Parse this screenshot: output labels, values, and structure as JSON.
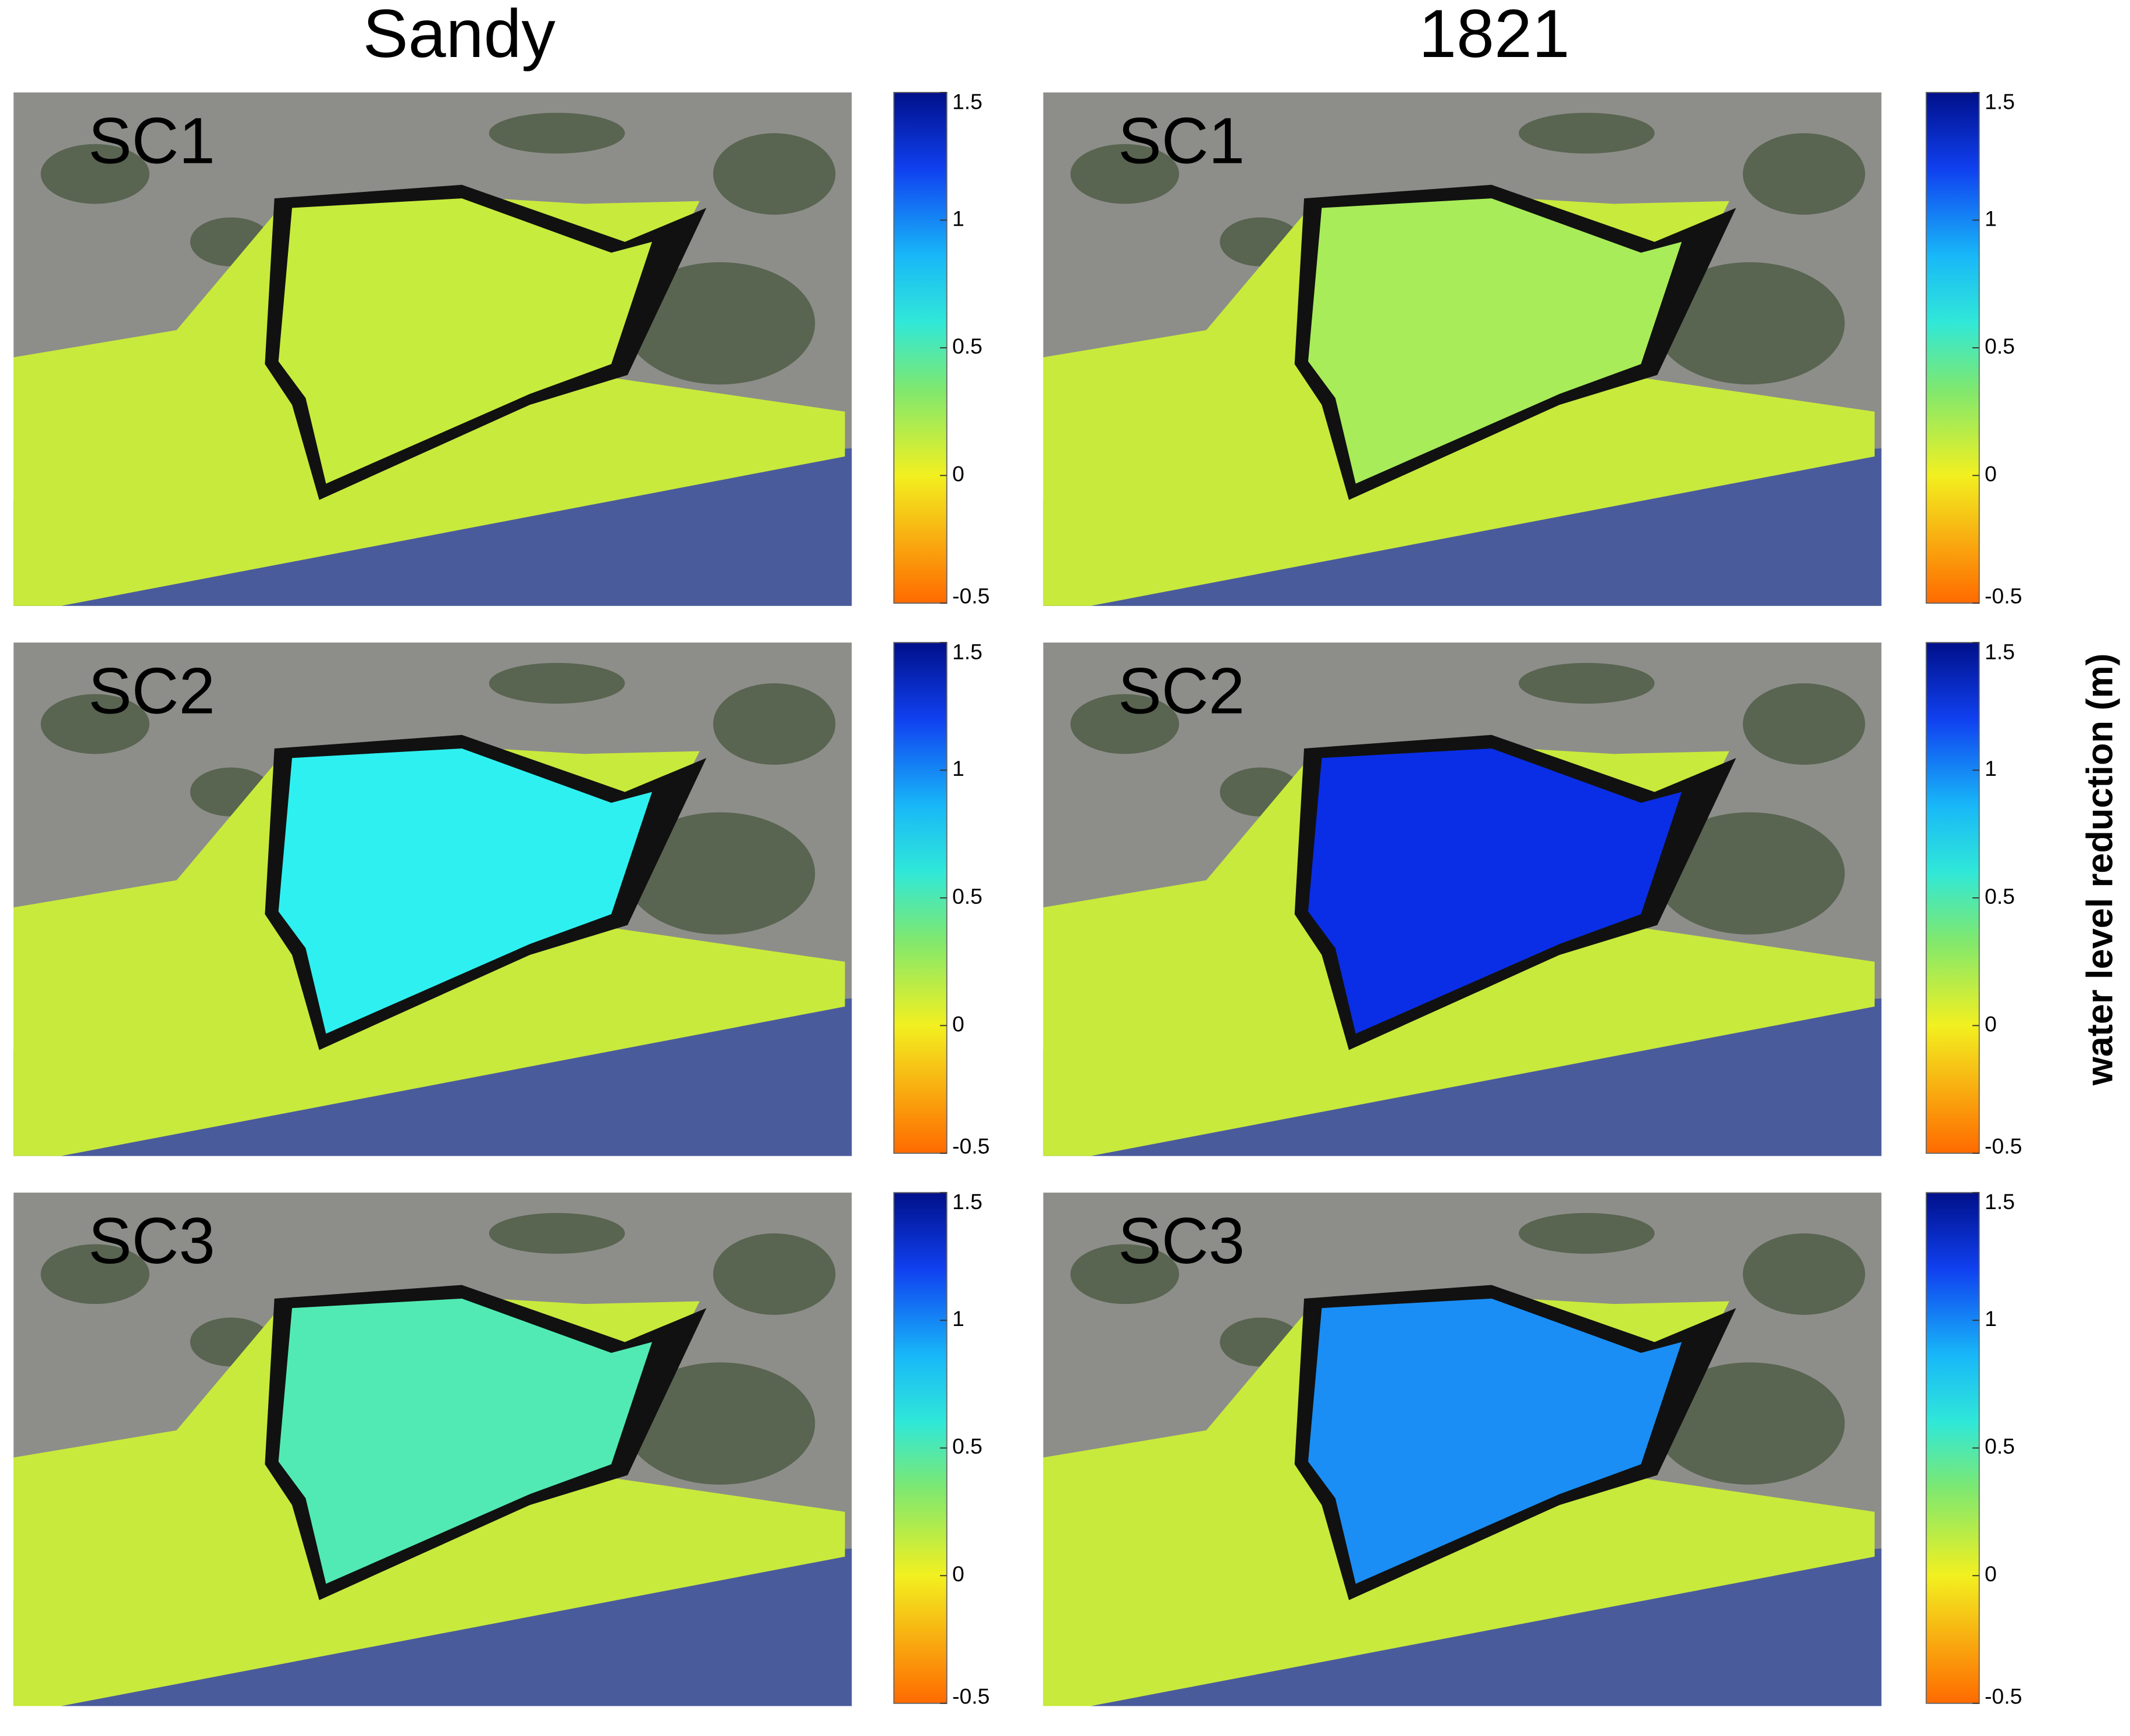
{
  "columns": [
    "Sandy",
    "1821"
  ],
  "rows": [
    "SC1",
    "SC2",
    "SC3"
  ],
  "panel_colors": [
    [
      "#c6ec3e",
      "#a8ec5a"
    ],
    [
      "#2ff0f0",
      "#0a2ee6"
    ],
    [
      "#52eab4",
      "#1a8ef5"
    ]
  ],
  "colorbar": {
    "lim": [
      -0.5,
      1.5
    ],
    "ticks": [
      1.5,
      1,
      0.5,
      0,
      -0.5
    ],
    "label": "water level reduction (m)"
  }
}
